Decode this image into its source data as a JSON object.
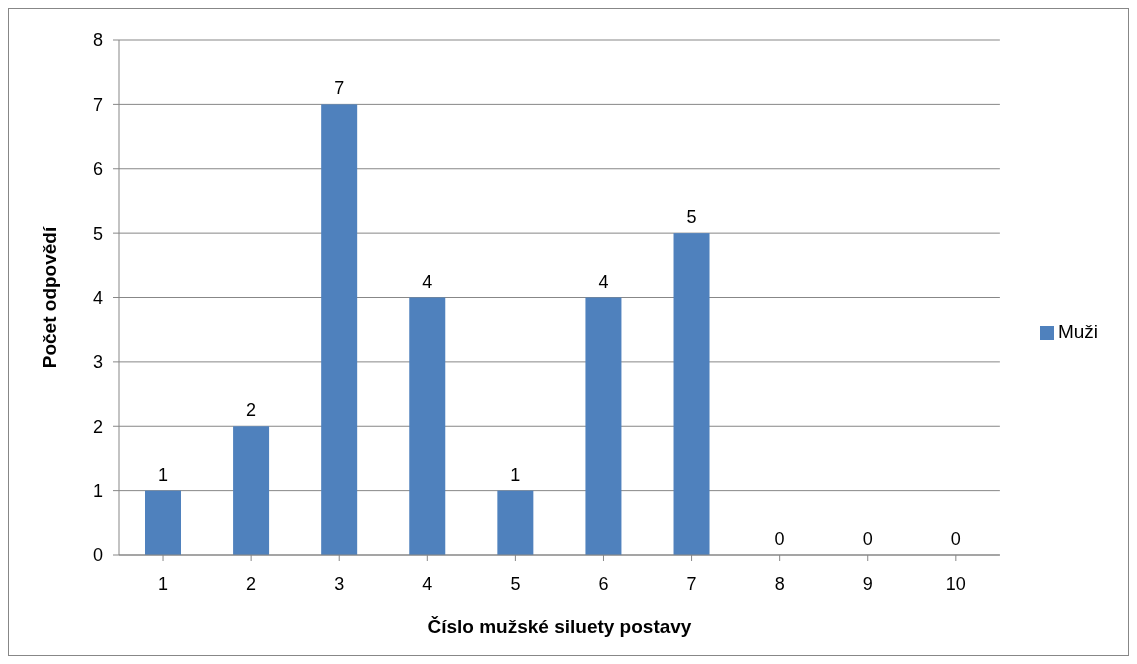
{
  "chart_data": {
    "type": "bar",
    "xlabel": "Číslo mužské siluety postavy",
    "ylabel": "Počet odpovědí",
    "categories": [
      "1",
      "2",
      "3",
      "4",
      "5",
      "6",
      "7",
      "8",
      "9",
      "10"
    ],
    "series": [
      {
        "name": "Muži",
        "color": "#4f81bd",
        "values": [
          1,
          2,
          7,
          4,
          1,
          4,
          5,
          0,
          0,
          0
        ]
      }
    ],
    "ylim": [
      0,
      8
    ],
    "yticks": [
      0,
      1,
      2,
      3,
      4,
      5,
      6,
      7,
      8
    ],
    "grid": "y",
    "legend": "right",
    "data_labels": true
  }
}
